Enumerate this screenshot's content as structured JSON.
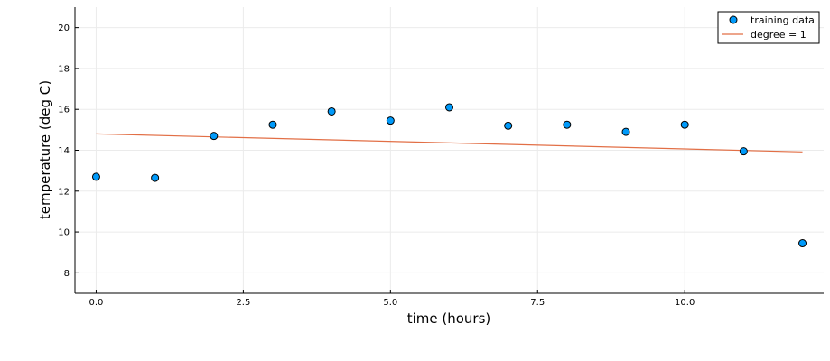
{
  "chart_data": {
    "type": "scatter",
    "title": "",
    "xlabel": "time (hours)",
    "ylabel": "temperature (deg C)",
    "xlim": [
      -0.36,
      12.36
    ],
    "ylim": [
      7.0,
      21.0
    ],
    "xticks": [
      0.0,
      2.5,
      5.0,
      7.5,
      10.0
    ],
    "xtick_labels": [
      "0.0",
      "2.5",
      "5.0",
      "7.5",
      "10.0"
    ],
    "yticks": [
      8,
      10,
      12,
      14,
      16,
      18,
      20
    ],
    "ytick_labels": [
      "8",
      "10",
      "12",
      "14",
      "16",
      "18",
      "20"
    ],
    "grid": true,
    "legend_position": "top-right",
    "series": [
      {
        "name": "training data",
        "kind": "scatter",
        "color": "#009AFA",
        "x": [
          0,
          1,
          2,
          3,
          4,
          5,
          6,
          7,
          8,
          9,
          10,
          11,
          12
        ],
        "y": [
          12.7,
          12.65,
          14.7,
          15.25,
          15.9,
          15.45,
          16.1,
          15.2,
          15.25,
          14.9,
          15.25,
          13.95,
          9.45
        ]
      },
      {
        "name": "degree = 1",
        "kind": "line",
        "color": "#E26F46",
        "x": [
          0,
          12
        ],
        "y": [
          14.8,
          13.92
        ]
      }
    ]
  }
}
